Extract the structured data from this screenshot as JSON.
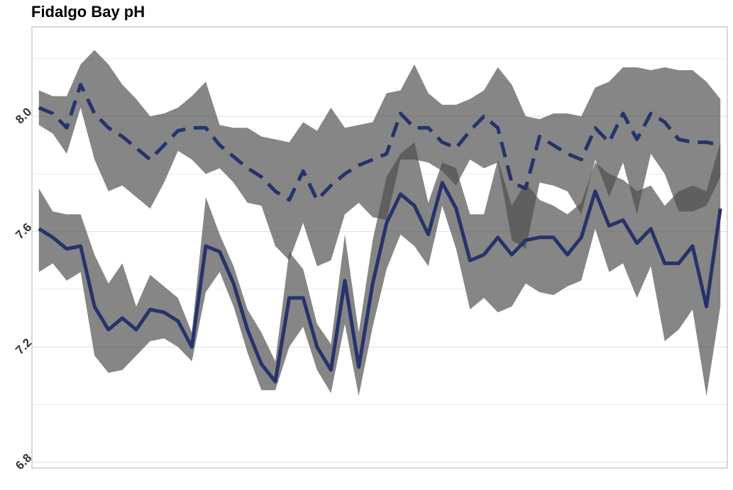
{
  "chart_data": {
    "type": "ribbon-line",
    "title": "Fidalgo Bay pH",
    "categories": [
      null,
      null,
      null,
      null,
      null,
      null,
      null,
      null,
      null,
      null,
      null,
      null,
      null,
      null,
      null,
      null,
      null,
      null,
      null,
      null,
      null,
      null,
      null,
      null,
      null,
      null,
      null,
      null,
      null,
      null,
      null,
      null,
      null,
      null,
      null,
      null,
      null,
      null,
      null,
      null,
      null,
      null,
      null,
      null,
      null,
      null,
      null,
      null,
      null,
      null
    ],
    "ylim": [
      6.78,
      8.31
    ],
    "yticks": [
      6.8,
      7.2,
      7.6,
      {
        "value": 8,
        "label": "8.0"
      }
    ],
    "minor_yticks": [
      7,
      7.4,
      7.8,
      8.2
    ],
    "grid": true,
    "band_color": "#4d4d4d",
    "series": [
      {
        "color": "#26336b",
        "dashed": true,
        "values": [
          8.03,
          8.01,
          7.96,
          8.11,
          8.01,
          7.96,
          7.93,
          7.89,
          7.85,
          7.9,
          7.95,
          7.96,
          7.96,
          7.9,
          7.86,
          7.82,
          7.79,
          7.74,
          7.71,
          7.81,
          7.71,
          7.76,
          7.8,
          7.83,
          7.85,
          7.87,
          8.01,
          7.96,
          7.96,
          7.91,
          7.89,
          7.95,
          8.0,
          7.96,
          7.77,
          7.75,
          7.93,
          7.9,
          7.87,
          7.85,
          7.96,
          7.91,
          8.01,
          7.92,
          8.01,
          7.98,
          7.92,
          7.91,
          7.91,
          7.9
        ],
        "upper": [
          8.09,
          8.07,
          8.07,
          8.18,
          8.23,
          8.18,
          8.11,
          8.06,
          8.0,
          8.01,
          8.03,
          8.07,
          8.12,
          7.97,
          7.96,
          7.96,
          7.93,
          7.92,
          7.91,
          7.98,
          7.95,
          8.03,
          7.96,
          7.97,
          7.98,
          8.08,
          8.09,
          8.18,
          8.08,
          8.04,
          8.04,
          8.06,
          8.09,
          8.17,
          8.11,
          8.0,
          7.99,
          8.01,
          8.01,
          8.0,
          8.1,
          8.12,
          8.17,
          8.17,
          8.16,
          8.17,
          8.16,
          8.16,
          8.12,
          8.06
        ],
        "lower": [
          7.97,
          7.94,
          7.87,
          8.03,
          7.85,
          7.74,
          7.76,
          7.72,
          7.68,
          7.77,
          7.88,
          7.85,
          7.8,
          7.82,
          7.77,
          7.7,
          7.69,
          7.55,
          7.5,
          7.63,
          7.48,
          7.5,
          7.66,
          7.7,
          7.65,
          7.64,
          7.85,
          7.85,
          7.84,
          7.81,
          7.76,
          7.85,
          7.82,
          7.84,
          7.57,
          7.54,
          7.77,
          7.76,
          7.74,
          7.66,
          7.85,
          7.72,
          7.84,
          7.66,
          7.87,
          7.8,
          7.67,
          7.67,
          7.69,
          7.79
        ]
      },
      {
        "color": "#26336b",
        "dashed": false,
        "values": [
          7.61,
          7.58,
          7.54,
          7.55,
          7.34,
          7.26,
          7.3,
          7.26,
          7.33,
          7.32,
          7.29,
          7.2,
          7.55,
          7.53,
          7.42,
          7.26,
          7.14,
          7.08,
          7.37,
          7.37,
          7.2,
          7.12,
          7.43,
          7.13,
          7.42,
          7.63,
          7.73,
          7.69,
          7.59,
          7.77,
          7.68,
          7.5,
          7.52,
          7.58,
          7.52,
          7.57,
          7.58,
          7.58,
          7.52,
          7.58,
          7.74,
          7.62,
          7.64,
          7.56,
          7.61,
          7.49,
          7.49,
          7.55,
          7.34,
          7.68
        ],
        "upper": [
          7.75,
          7.67,
          7.66,
          7.66,
          7.52,
          7.42,
          7.49,
          7.34,
          7.45,
          7.41,
          7.37,
          7.25,
          7.72,
          7.59,
          7.48,
          7.33,
          7.25,
          7.15,
          7.53,
          7.47,
          7.28,
          7.21,
          7.59,
          7.25,
          7.57,
          7.79,
          7.87,
          7.91,
          7.7,
          7.84,
          7.82,
          7.66,
          7.66,
          7.85,
          7.69,
          7.77,
          7.71,
          7.69,
          7.66,
          7.7,
          7.84,
          7.8,
          7.78,
          7.74,
          7.76,
          7.69,
          7.74,
          7.76,
          7.74,
          7.91
        ],
        "lower": [
          7.46,
          7.49,
          7.43,
          7.46,
          7.17,
          7.11,
          7.12,
          7.17,
          7.22,
          7.23,
          7.2,
          7.15,
          7.39,
          7.46,
          7.34,
          7.18,
          7.05,
          7.05,
          7.2,
          7.27,
          7.12,
          7.04,
          7.28,
          7.03,
          7.27,
          7.47,
          7.59,
          7.55,
          7.48,
          7.69,
          7.54,
          7.33,
          7.37,
          7.32,
          7.34,
          7.42,
          7.39,
          7.38,
          7.41,
          7.43,
          7.61,
          7.46,
          7.49,
          7.37,
          7.48,
          7.22,
          7.26,
          7.33,
          7.03,
          7.34
        ]
      }
    ]
  }
}
